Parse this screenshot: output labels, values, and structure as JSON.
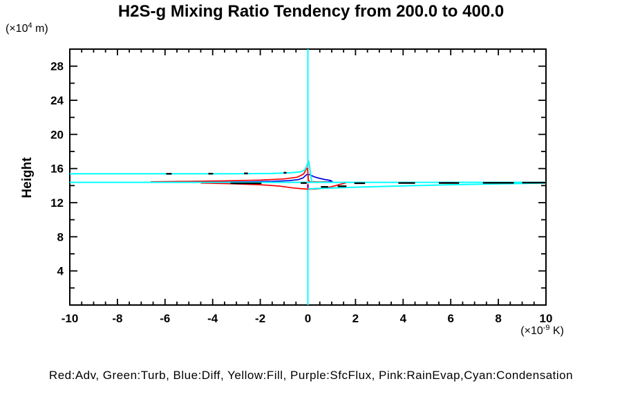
{
  "header": {
    "title": "H2S-g Mixing Ratio Tendency from 200.0 to 400.0"
  },
  "y_axis": {
    "label": "Height",
    "unit_prefix": "(×10",
    "unit_exp": "4",
    "unit_suffix": " m)"
  },
  "x_axis": {
    "unit_prefix": "(×10",
    "unit_exp": "-9",
    "unit_suffix": " K)"
  },
  "legend": {
    "text": "Red:Adv, Green:Turb, Blue:Diff, Yellow:Fill, Purple:SfcFlux, Pink:RainEvap,Cyan:Condensation"
  },
  "chart_data": {
    "type": "line",
    "title": "H2S-g Mixing Ratio Tendency from 200.0 to 400.0",
    "xlabel": "(×10^-9 K)",
    "ylabel": "Height (×10^4 m)",
    "xlim": [
      -10,
      10
    ],
    "ylim": [
      0,
      30
    ],
    "x_ticks": [
      -10,
      -8,
      -6,
      -4,
      -2,
      0,
      2,
      4,
      6,
      8,
      10
    ],
    "y_ticks": [
      4,
      8,
      12,
      16,
      20,
      24,
      28
    ],
    "x_minor_step": 0.5,
    "y_minor_step": 2,
    "grid": false,
    "legend_position": "bottom-text-line",
    "axis_color": "#000000",
    "series": [
      {
        "name": "zero-line",
        "label": "zero tendency line (cyan)",
        "color": "#00ffff",
        "width": 2,
        "segments": [
          [
            [
              0,
              30
            ],
            [
              0,
              0
            ]
          ]
        ]
      },
      {
        "name": "rainevap",
        "label": "RainEvap",
        "color": "#ff8f8f",
        "width": 2,
        "segments": [
          [
            [
              0,
              16.9
            ],
            [
              0,
              13.5
            ]
          ]
        ]
      },
      {
        "name": "sfcflux",
        "label": "SfcFlux",
        "color": "#8000c0",
        "width": 2.5,
        "segments": [
          [
            [
              0,
              14.15
            ],
            [
              0,
              13.72
            ]
          ]
        ]
      },
      {
        "name": "diff",
        "label": "Diff",
        "color": "#0000dd",
        "width": 1.7,
        "segments": [
          [
            [
              -6.3,
              14.4
            ],
            [
              -4,
              14.42
            ],
            [
              -2.5,
              14.45
            ],
            [
              -1.5,
              14.5
            ],
            [
              -0.8,
              14.58
            ],
            [
              -0.4,
              14.7
            ],
            [
              -0.2,
              14.9
            ],
            [
              -0.1,
              15.18
            ],
            [
              -0.04,
              15.3
            ],
            [
              0.05,
              15.3
            ],
            [
              0.12,
              15.22
            ],
            [
              0.25,
              15.05
            ],
            [
              0.45,
              14.88
            ],
            [
              0.7,
              14.72
            ],
            [
              0.95,
              14.6
            ],
            [
              1.02,
              14.5
            ],
            [
              0.85,
              14.44
            ],
            [
              0.45,
              14.4
            ],
            [
              0.1,
              14.38
            ]
          ]
        ]
      },
      {
        "name": "adv",
        "label": "Adv",
        "color": "#ff0000",
        "width": 1.7,
        "segments": [
          [
            [
              -6.6,
              14.45
            ],
            [
              -5,
              14.5
            ],
            [
              -3.5,
              14.55
            ],
            [
              -2,
              14.65
            ],
            [
              -1,
              14.78
            ],
            [
              -0.45,
              14.98
            ],
            [
              -0.18,
              15.35
            ],
            [
              -0.06,
              15.98
            ],
            [
              -0.02,
              16.04
            ],
            [
              0.01,
              15.2
            ],
            [
              0.03,
              14.6
            ],
            [
              0.08,
              14.46
            ],
            [
              0.4,
              14.43
            ],
            [
              0.9,
              14.42
            ]
          ],
          [
            [
              -4.5,
              14.3
            ],
            [
              -3.2,
              14.22
            ],
            [
              -2,
              14.1
            ],
            [
              -1.2,
              13.95
            ],
            [
              -0.6,
              13.72
            ],
            [
              -0.25,
              13.63
            ],
            [
              0.02,
              13.58
            ],
            [
              0.35,
              13.6
            ],
            [
              0.75,
              13.72
            ],
            [
              1.1,
              13.95
            ],
            [
              1.4,
              14.18
            ],
            [
              1.6,
              14.32
            ]
          ]
        ]
      },
      {
        "name": "condensation",
        "label": "Condensation",
        "color": "#00ffff",
        "width": 2,
        "segments": [
          [
            [
              -10,
              15.38
            ],
            [
              -3,
              15.38
            ],
            [
              -1.5,
              15.42
            ],
            [
              -0.7,
              15.5
            ],
            [
              -0.3,
              15.62
            ],
            [
              -0.12,
              15.85
            ],
            [
              -0.02,
              16.55
            ],
            [
              0.03,
              16.88
            ],
            [
              0.07,
              16.3
            ],
            [
              0.1,
              15.6
            ],
            [
              0.13,
              15.0
            ],
            [
              0.16,
              14.55
            ],
            [
              0.17,
              14.42
            ]
          ],
          [
            [
              -10,
              14.38
            ],
            [
              10,
              14.38
            ]
          ],
          [
            [
              0.02,
              13.62
            ],
            [
              0.8,
              13.7
            ],
            [
              2,
              13.82
            ],
            [
              4,
              13.97
            ],
            [
              6,
              14.1
            ],
            [
              8,
              14.2
            ],
            [
              10,
              14.3
            ]
          ]
        ]
      },
      {
        "name": "total-dashed",
        "label": "total (black dashed)",
        "color": "#000000",
        "width": 2.4,
        "segments": [
          [
            [
              -5.95,
              15.38
            ],
            [
              -5.72,
              15.38
            ]
          ],
          [
            [
              -4.18,
              15.4
            ],
            [
              -3.98,
              15.4
            ]
          ],
          [
            [
              -2.68,
              15.43
            ],
            [
              -2.52,
              15.43
            ]
          ],
          [
            [
              -1.02,
              15.5
            ],
            [
              -0.9,
              15.5
            ]
          ],
          [
            [
              -3.25,
              14.26
            ],
            [
              -1.95,
              14.26
            ]
          ],
          [
            [
              -0.3,
              14.3
            ],
            [
              -0.05,
              14.3
            ]
          ],
          [
            [
              0.55,
              13.85
            ],
            [
              0.85,
              13.85
            ]
          ],
          [
            [
              1.25,
              13.92
            ],
            [
              1.62,
              13.92
            ]
          ],
          [
            [
              1.95,
              14.28
            ],
            [
              2.4,
              14.28
            ]
          ],
          [
            [
              3.8,
              14.3
            ],
            [
              4.5,
              14.3
            ]
          ],
          [
            [
              5.5,
              14.31
            ],
            [
              6.35,
              14.31
            ]
          ],
          [
            [
              7.35,
              14.33
            ],
            [
              8.65,
              14.33
            ]
          ],
          [
            [
              9.0,
              14.34
            ],
            [
              10,
              14.34
            ]
          ]
        ]
      }
    ]
  }
}
